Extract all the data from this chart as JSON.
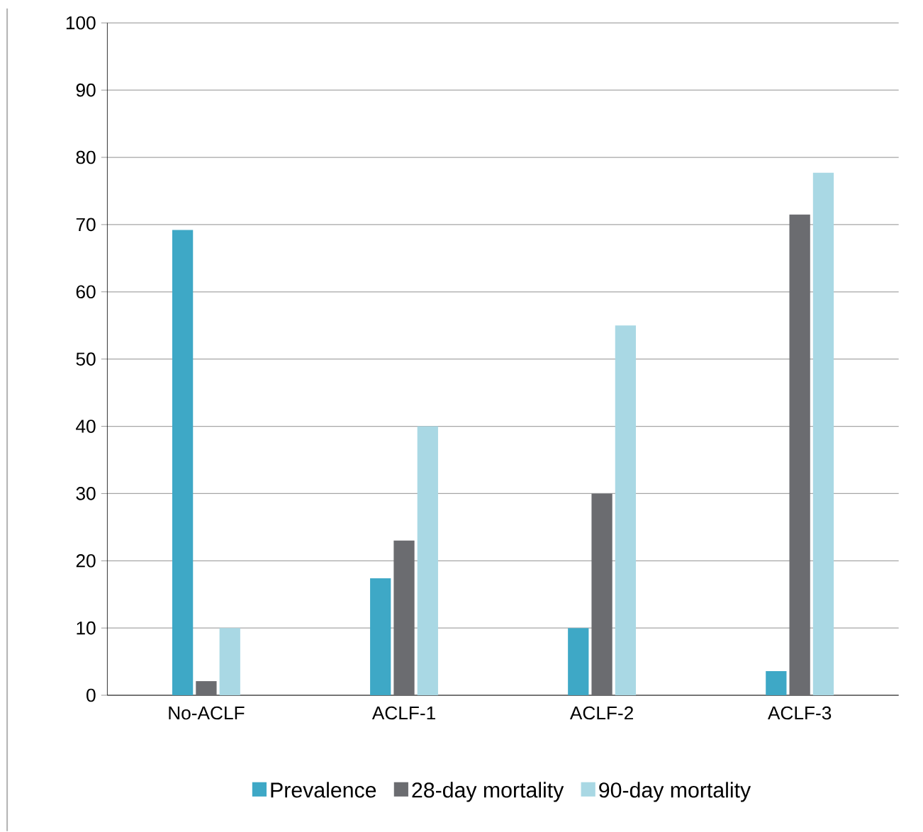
{
  "chart_data": {
    "type": "bar",
    "categories": [
      "No-ACLF",
      "ACLF-1",
      "ACLF-2",
      "ACLF-3"
    ],
    "series": [
      {
        "name": "Prevalence",
        "color": "#3ea8c6",
        "values": [
          69.2,
          17.4,
          10,
          3.6
        ]
      },
      {
        "name": "28-day mortality",
        "color": "#6b6c70",
        "values": [
          2.1,
          23,
          30,
          71.5
        ]
      },
      {
        "name": "90-day mortality",
        "color": "#a9d8e4",
        "values": [
          10,
          40,
          55,
          77.7
        ]
      }
    ],
    "ylim": [
      0,
      100
    ],
    "yticks": [
      0,
      10,
      20,
      30,
      40,
      50,
      60,
      70,
      80,
      90,
      100
    ],
    "grid": "y",
    "legend": "bottom"
  }
}
